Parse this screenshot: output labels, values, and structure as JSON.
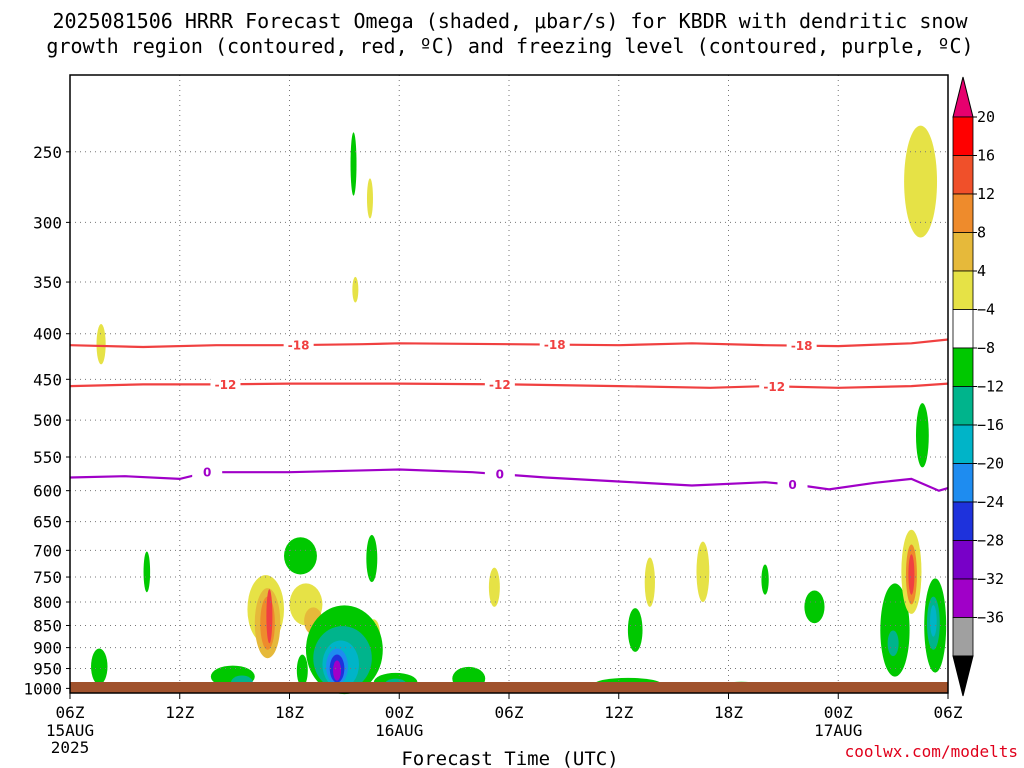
{
  "chart_data": {
    "type": "heatmap",
    "title_lines": [
      "2025081506 HRRR Forecast Omega (shaded, μbar/s) for KBDR with dendritic snow",
      "growth region (contoured, red, ºC) and freezing level (contoured, purple, ºC)"
    ],
    "xlabel": "Forecast Time (UTC)",
    "credit": "coolwx.com/modelts",
    "x_ticks": [
      {
        "hours": 0,
        "label": "06Z",
        "sub1": "15AUG",
        "sub2": "2025"
      },
      {
        "hours": 6,
        "label": "12Z",
        "sub1": "",
        "sub2": ""
      },
      {
        "hours": 12,
        "label": "18Z",
        "sub1": "",
        "sub2": ""
      },
      {
        "hours": 18,
        "label": "00Z",
        "sub1": "16AUG",
        "sub2": ""
      },
      {
        "hours": 24,
        "label": "06Z",
        "sub1": "",
        "sub2": ""
      },
      {
        "hours": 30,
        "label": "12Z",
        "sub1": "",
        "sub2": ""
      },
      {
        "hours": 36,
        "label": "18Z",
        "sub1": "",
        "sub2": ""
      },
      {
        "hours": 42,
        "label": "00Z",
        "sub1": "17AUG",
        "sub2": ""
      },
      {
        "hours": 48,
        "label": "06Z",
        "sub1": "",
        "sub2": ""
      }
    ],
    "y_ticks": [
      "250",
      "300",
      "350",
      "400",
      "450",
      "500",
      "550",
      "600",
      "650",
      "700",
      "750",
      "800",
      "850",
      "900",
      "950",
      "1000"
    ],
    "y_scale": "log-pressure",
    "colorbar": {
      "labels": [
        "20",
        "16",
        "12",
        "8",
        "4",
        "−4",
        "−8",
        "−12",
        "−16",
        "−20",
        "−24",
        "−28",
        "−32",
        "−36"
      ],
      "bins": [
        {
          "color": "#ff0000"
        },
        {
          "color": "#f0502a"
        },
        {
          "color": "#ee8b2c"
        },
        {
          "color": "#e6b93a"
        },
        {
          "color": "#e6e246"
        },
        {
          "color": "#ffffff"
        },
        {
          "color": "#00c800"
        },
        {
          "color": "#00b48c"
        },
        {
          "color": "#00b4c8"
        },
        {
          "color": "#1e8cf0"
        },
        {
          "color": "#1e32dc"
        },
        {
          "color": "#7800c8"
        },
        {
          "color": "#a000c8"
        },
        {
          "color": "#a0a0a0"
        }
      ],
      "top_color": "#e6006e",
      "bottom_color": "#000000"
    },
    "contours": [
      {
        "name": "-18",
        "color": "#f04040",
        "label": "-18",
        "points": [
          [
            0,
            412
          ],
          [
            4,
            414
          ],
          [
            8,
            412
          ],
          [
            12,
            412
          ],
          [
            16,
            411
          ],
          [
            18,
            410
          ],
          [
            24,
            411
          ],
          [
            30,
            412
          ],
          [
            34,
            410
          ],
          [
            38,
            412
          ],
          [
            42,
            413
          ],
          [
            46,
            410
          ],
          [
            48,
            406
          ]
        ],
        "label_hours": [
          12.5,
          26.5,
          40
        ]
      },
      {
        "name": "-12",
        "color": "#f04040",
        "label": "-12",
        "points": [
          [
            0,
            458
          ],
          [
            4,
            456
          ],
          [
            8,
            456
          ],
          [
            12,
            455
          ],
          [
            18,
            455
          ],
          [
            24,
            456
          ],
          [
            30,
            458
          ],
          [
            35,
            460
          ],
          [
            38,
            458
          ],
          [
            42,
            460
          ],
          [
            46,
            458
          ],
          [
            48,
            455
          ]
        ],
        "label_hours": [
          8.5,
          23.5,
          38.5
        ]
      },
      {
        "name": "0",
        "color": "#a000c8",
        "label": "0",
        "points": [
          [
            0,
            580
          ],
          [
            3,
            578
          ],
          [
            6,
            582
          ],
          [
            7.5,
            572
          ],
          [
            12,
            572
          ],
          [
            18,
            568
          ],
          [
            22,
            572
          ],
          [
            26,
            580
          ],
          [
            30,
            586
          ],
          [
            34,
            592
          ],
          [
            38,
            587
          ],
          [
            40,
            592
          ],
          [
            41.5,
            598
          ],
          [
            44,
            588
          ],
          [
            46,
            582
          ],
          [
            47.5,
            600
          ],
          [
            48,
            596
          ]
        ],
        "label_hours": [
          7.5,
          23.5,
          39.5
        ]
      }
    ],
    "shaded_regions": [
      {
        "hour": 1.7,
        "p": 411,
        "dh": 0.25,
        "dp": 22,
        "color": "#e6e246"
      },
      {
        "hour": 15.5,
        "p": 258,
        "dh": 0.15,
        "dp": 22,
        "color": "#00c800"
      },
      {
        "hour": 16.4,
        "p": 282,
        "dh": 0.15,
        "dp": 15,
        "color": "#e6e246"
      },
      {
        "hour": 15.6,
        "p": 357,
        "dh": 0.15,
        "dp": 12,
        "color": "#e6e246"
      },
      {
        "hour": 46.5,
        "p": 270,
        "dh": 0.9,
        "dp": 42,
        "color": "#e6e246"
      },
      {
        "hour": 46.6,
        "p": 520,
        "dh": 0.35,
        "dp": 45,
        "color": "#00c800"
      },
      {
        "hour": 4.2,
        "p": 740,
        "dh": 0.18,
        "dp": 40,
        "color": "#00c800"
      },
      {
        "hour": 12.6,
        "p": 710,
        "dh": 0.9,
        "dp": 35,
        "color": "#00c800"
      },
      {
        "hour": 16.5,
        "p": 715,
        "dh": 0.3,
        "dp": 45,
        "color": "#00c800"
      },
      {
        "hour": 23.2,
        "p": 770,
        "dh": 0.3,
        "dp": 40,
        "color": "#e6e246"
      },
      {
        "hour": 31.7,
        "p": 760,
        "dh": 0.28,
        "dp": 50,
        "color": "#e6e246"
      },
      {
        "hour": 34.6,
        "p": 740,
        "dh": 0.35,
        "dp": 60,
        "color": "#e6e246"
      },
      {
        "hour": 38.0,
        "p": 755,
        "dh": 0.2,
        "dp": 30,
        "color": "#00c800"
      },
      {
        "hour": 40.7,
        "p": 810,
        "dh": 0.55,
        "dp": 35,
        "color": "#00c800"
      },
      {
        "hour": 30.9,
        "p": 860,
        "dh": 0.4,
        "dp": 50,
        "color": "#00c800"
      },
      {
        "hour": 16.6,
        "p": 870,
        "dh": 0.35,
        "dp": 35,
        "color": "#e6e246"
      },
      {
        "hour": 1.6,
        "p": 945,
        "dh": 0.45,
        "dp": 45,
        "color": "#00c800"
      },
      {
        "hour": 10.7,
        "p": 815,
        "dh": 1.0,
        "dp": 75,
        "color": "#e6e246"
      },
      {
        "hour": 10.8,
        "p": 845,
        "dh": 0.7,
        "dp": 80,
        "color": "#e6b93a"
      },
      {
        "hour": 10.8,
        "p": 845,
        "dh": 0.4,
        "dp": 60,
        "color": "#ee8b2c"
      },
      {
        "hour": 10.9,
        "p": 830,
        "dh": 0.15,
        "dp": 60,
        "color": "#f04040"
      },
      {
        "hour": 12.9,
        "p": 805,
        "dh": 0.9,
        "dp": 45,
        "color": "#e6e246"
      },
      {
        "hour": 13.3,
        "p": 840,
        "dh": 0.5,
        "dp": 30,
        "color": "#e6b93a"
      },
      {
        "hour": 12.7,
        "p": 955,
        "dh": 0.3,
        "dp": 40,
        "color": "#00c800"
      },
      {
        "hour": 8.9,
        "p": 970,
        "dh": 1.2,
        "dp": 28,
        "color": "#00c800"
      },
      {
        "hour": 9.4,
        "p": 985,
        "dh": 0.6,
        "dp": 18,
        "color": "#00b48c"
      },
      {
        "hour": 15.0,
        "p": 905,
        "dh": 2.1,
        "dp": 110,
        "color": "#00c800"
      },
      {
        "hour": 14.9,
        "p": 925,
        "dh": 1.6,
        "dp": 80,
        "color": "#00b48c"
      },
      {
        "hour": 14.8,
        "p": 940,
        "dh": 1.0,
        "dp": 60,
        "color": "#00b4c8"
      },
      {
        "hour": 14.6,
        "p": 945,
        "dh": 0.6,
        "dp": 45,
        "color": "#1e8cf0"
      },
      {
        "hour": 14.6,
        "p": 950,
        "dh": 0.4,
        "dp": 35,
        "color": "#1e32dc"
      },
      {
        "hour": 14.6,
        "p": 955,
        "dh": 0.22,
        "dp": 25,
        "color": "#a000c8"
      },
      {
        "hour": 17.8,
        "p": 985,
        "dh": 1.2,
        "dp": 25,
        "color": "#00c800"
      },
      {
        "hour": 17.8,
        "p": 990,
        "dh": 0.6,
        "dp": 15,
        "color": "#00b48c"
      },
      {
        "hour": 21.8,
        "p": 975,
        "dh": 0.9,
        "dp": 30,
        "color": "#00c800"
      },
      {
        "hour": 30.5,
        "p": 988,
        "dh": 1.8,
        "dp": 15,
        "color": "#00c800"
      },
      {
        "hour": 36.7,
        "p": 995,
        "dh": 1.3,
        "dp": 12,
        "color": "#00c800"
      },
      {
        "hour": 45.1,
        "p": 860,
        "dh": 0.8,
        "dp": 110,
        "color": "#00c800"
      },
      {
        "hour": 45.0,
        "p": 890,
        "dh": 0.3,
        "dp": 30,
        "color": "#00b48c"
      },
      {
        "hour": 46.0,
        "p": 740,
        "dh": 0.55,
        "dp": 85,
        "color": "#e6e246"
      },
      {
        "hour": 46.0,
        "p": 745,
        "dh": 0.3,
        "dp": 60,
        "color": "#ee8b2c"
      },
      {
        "hour": 46.0,
        "p": 745,
        "dh": 0.15,
        "dp": 40,
        "color": "#f04040"
      },
      {
        "hour": 47.3,
        "p": 850,
        "dh": 0.6,
        "dp": 110,
        "color": "#00c800"
      },
      {
        "hour": 47.2,
        "p": 845,
        "dh": 0.35,
        "dp": 60,
        "color": "#00b48c"
      },
      {
        "hour": 47.2,
        "p": 840,
        "dh": 0.18,
        "dp": 35,
        "color": "#00b4c8"
      }
    ],
    "terrain_color": "#a0522d",
    "grid": true
  }
}
